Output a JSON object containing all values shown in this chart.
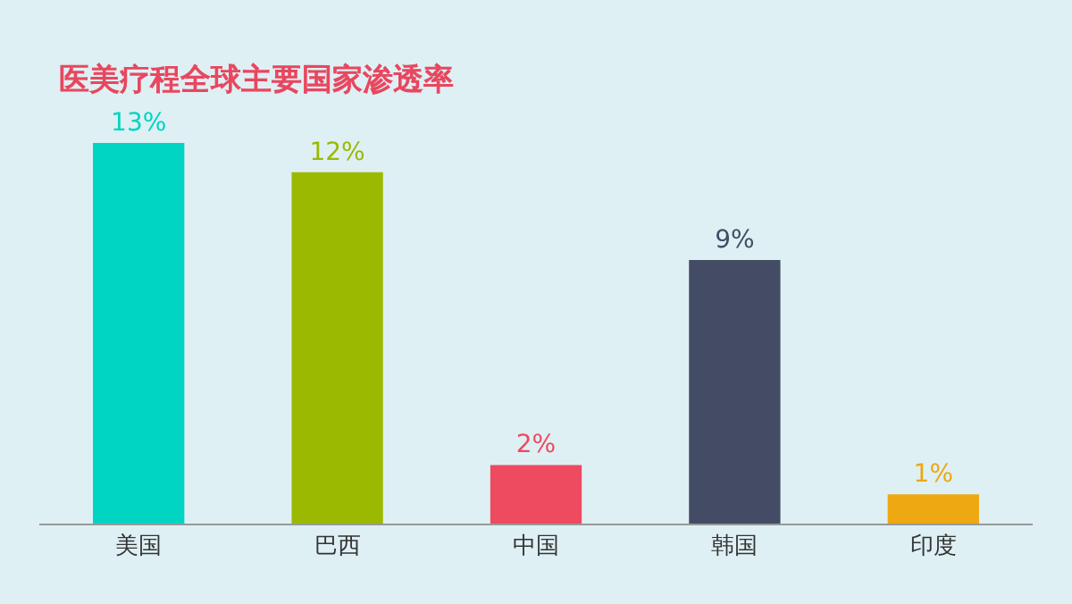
{
  "chart_data": {
    "type": "bar",
    "title": "医美疗程全球主要国家渗透率",
    "categories": [
      "美国",
      "巴西",
      "中国",
      "韩国",
      "印度"
    ],
    "values": [
      13,
      12,
      2,
      9,
      1
    ],
    "colors": [
      "#00d4c2",
      "#9bb900",
      "#ee4a60",
      "#434c64",
      "#eda812"
    ],
    "value_labels": [
      "13%",
      "12%",
      "2%",
      "9%",
      "1%"
    ]
  }
}
